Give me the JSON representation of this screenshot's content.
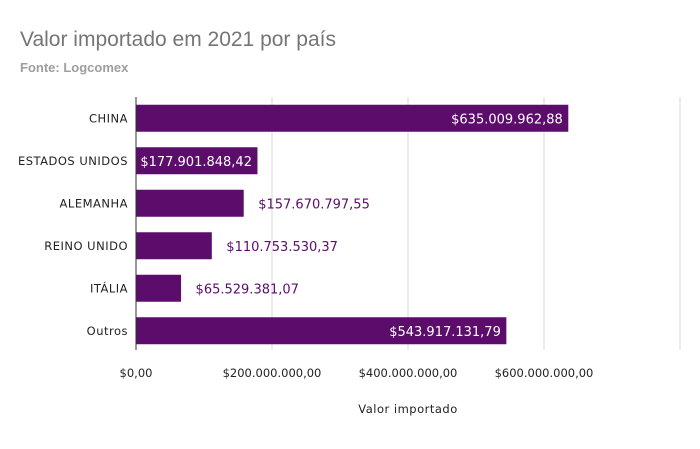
{
  "chart_data": {
    "type": "bar",
    "orientation": "horizontal",
    "title": "Valor importado em 2021 por país",
    "subtitle": "Fonte: Logcomex",
    "categories": [
      "CHINA",
      "ESTADOS UNIDOS",
      "ALEMANHA",
      "REINO UNIDO",
      "ITÁLIA",
      "Outros"
    ],
    "values": [
      635009962.88,
      177901848.42,
      157670797.55,
      110753530.37,
      65529381.07,
      543917131.79
    ],
    "data_labels": [
      "$635.009.962,88",
      "$177.901.848,42",
      "$157.670.797,55",
      "$110.753.530,37",
      "$65.529.381,07",
      "$543.917.131,79"
    ],
    "xlabel": "Valor importado",
    "ylabel": "",
    "xlim": [
      0,
      800000000
    ],
    "x_ticks": [
      0,
      200000000,
      400000000,
      600000000,
      800000000
    ],
    "x_tick_labels": [
      "$0,00",
      "$200.000.000,00",
      "$400.000.000,00",
      "$600.000.000,00",
      ""
    ],
    "grid": true,
    "legend": "none",
    "colors": {
      "bar": "#5c0d6b",
      "label_inside": "#ffffff",
      "label_outside": "#5c0d6b"
    }
  }
}
